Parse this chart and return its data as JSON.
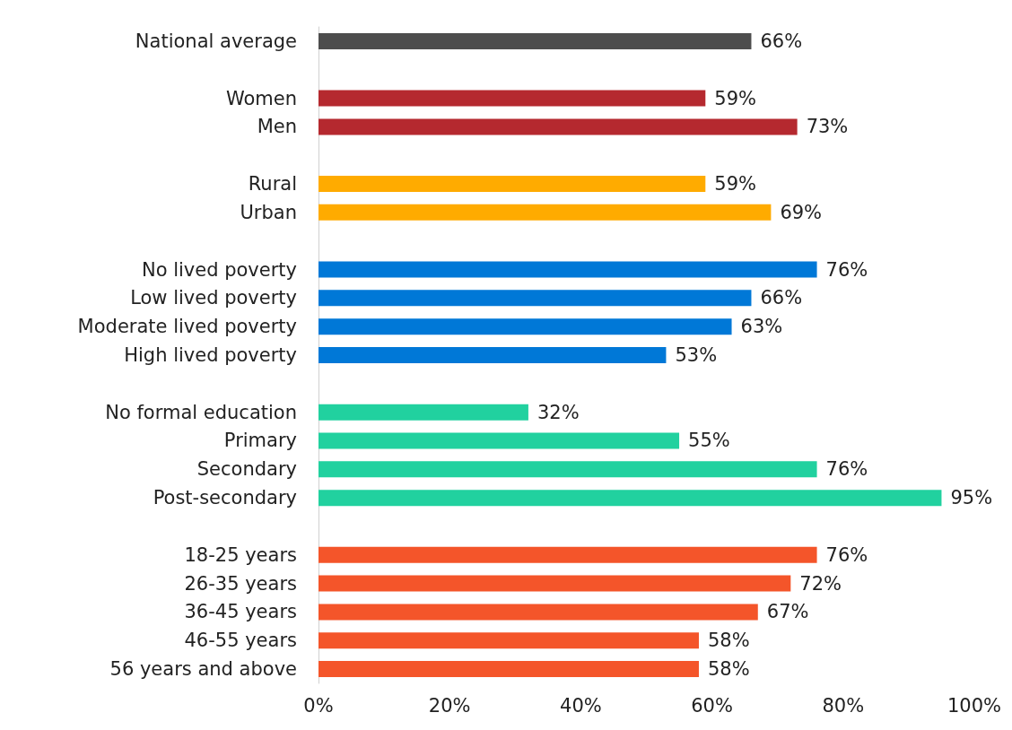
{
  "chart_data": {
    "type": "bar",
    "orientation": "horizontal",
    "categories": [
      "National average",
      null,
      "Women",
      "Men",
      null,
      "Rural",
      "Urban",
      null,
      "No lived poverty",
      "Low lived poverty",
      "Moderate lived poverty",
      "High lived poverty",
      null,
      "No formal education",
      "Primary",
      "Secondary",
      "Post-secondary",
      null,
      "18-25 years",
      "26-35 years",
      "36-45 years",
      "46-55 years",
      "56 years and above"
    ],
    "values": [
      66,
      null,
      59,
      73,
      null,
      59,
      69,
      null,
      76,
      66,
      63,
      53,
      null,
      32,
      55,
      76,
      95,
      null,
      76,
      72,
      67,
      58,
      58
    ],
    "value_labels": [
      "66%",
      null,
      "59%",
      "73%",
      null,
      "59%",
      "69%",
      null,
      "76%",
      "66%",
      "63%",
      "53%",
      null,
      "32%",
      "55%",
      "76%",
      "95%",
      null,
      "76%",
      "72%",
      "67%",
      "58%",
      "58%"
    ],
    "colors": [
      "#4d4d4d",
      null,
      "#b5292f",
      "#b5292f",
      null,
      "#ffab00",
      "#ffab00",
      null,
      "#0078d7",
      "#0078d7",
      "#0078d7",
      "#0078d7",
      null,
      "#21d19f",
      "#21d19f",
      "#21d19f",
      "#21d19f",
      null,
      "#f4552a",
      "#f4552a",
      "#f4552a",
      "#f4552a",
      "#f4552a"
    ],
    "xlim": [
      0,
      100
    ],
    "xticks": [
      {
        "value": 0,
        "label": "0%"
      },
      {
        "value": 20,
        "label": "20%"
      },
      {
        "value": 40,
        "label": "40%"
      },
      {
        "value": 60,
        "label": "60%"
      },
      {
        "value": 80,
        "label": "80%"
      },
      {
        "value": 100,
        "label": "100%"
      }
    ],
    "grid": false
  }
}
